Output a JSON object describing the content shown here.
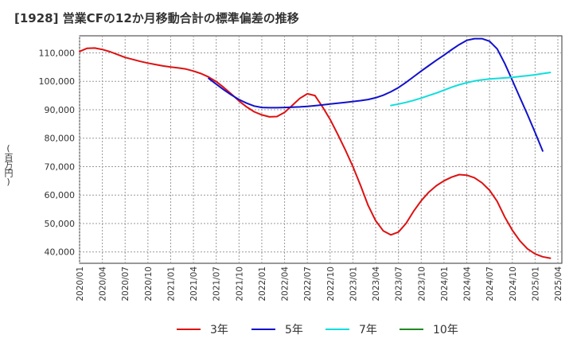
{
  "chart_title": "[1928]  営業CFの12か月移動合計の標準偏差の推移",
  "y_unit": "(百万円)",
  "chart_data": {
    "type": "line",
    "title": "[1928]  営業CFの12か月移動合計の標準偏差の推移",
    "ylabel": "(百万円)",
    "ylim": [
      36000,
      116000
    ],
    "y_ticks": [
      40000,
      50000,
      60000,
      70000,
      80000,
      90000,
      100000,
      110000
    ],
    "y_tick_labels": [
      "40,000",
      "50,000",
      "60,000",
      "70,000",
      "80,000",
      "90,000",
      "100,000",
      "110,000"
    ],
    "x_ticks": [
      "2020/01",
      "2020/04",
      "2020/07",
      "2020/10",
      "2021/01",
      "2021/04",
      "2021/07",
      "2021/10",
      "2022/01",
      "2022/04",
      "2022/07",
      "2022/10",
      "2023/01",
      "2023/04",
      "2023/07",
      "2023/10",
      "2024/01",
      "2024/04",
      "2024/07",
      "2024/10",
      "2025/01",
      "2025/04"
    ],
    "grid": true,
    "legend_position": "bottom",
    "series": [
      {
        "name": "3年",
        "color": "#dd1111",
        "points": [
          [
            "2020/01",
            110500
          ],
          [
            "2020/02",
            111600
          ],
          [
            "2020/03",
            111700
          ],
          [
            "2020/04",
            111200
          ],
          [
            "2020/05",
            110400
          ],
          [
            "2020/06",
            109400
          ],
          [
            "2020/07",
            108400
          ],
          [
            "2020/08",
            107700
          ],
          [
            "2020/09",
            107000
          ],
          [
            "2020/10",
            106400
          ],
          [
            "2020/11",
            105900
          ],
          [
            "2020/12",
            105400
          ],
          [
            "2021/01",
            105000
          ],
          [
            "2021/02",
            104700
          ],
          [
            "2021/03",
            104300
          ],
          [
            "2021/04",
            103600
          ],
          [
            "2021/05",
            102700
          ],
          [
            "2021/06",
            101500
          ],
          [
            "2021/07",
            99900
          ],
          [
            "2021/08",
            97800
          ],
          [
            "2021/09",
            95500
          ],
          [
            "2021/10",
            93100
          ],
          [
            "2021/11",
            91000
          ],
          [
            "2021/12",
            89300
          ],
          [
            "2022/01",
            88200
          ],
          [
            "2022/02",
            87500
          ],
          [
            "2022/03",
            87600
          ],
          [
            "2022/04",
            89100
          ],
          [
            "2022/05",
            91500
          ],
          [
            "2022/06",
            94000
          ],
          [
            "2022/07",
            95600
          ],
          [
            "2022/08",
            95000
          ],
          [
            "2022/09",
            91000
          ],
          [
            "2022/10",
            86600
          ],
          [
            "2022/11",
            81400
          ],
          [
            "2022/12",
            75900
          ],
          [
            "2023/01",
            70000
          ],
          [
            "2023/02",
            63400
          ],
          [
            "2023/03",
            56400
          ],
          [
            "2023/04",
            51000
          ],
          [
            "2023/05",
            47400
          ],
          [
            "2023/06",
            46000
          ],
          [
            "2023/07",
            47000
          ],
          [
            "2023/08",
            50000
          ],
          [
            "2023/09",
            54300
          ],
          [
            "2023/10",
            58000
          ],
          [
            "2023/11",
            61000
          ],
          [
            "2023/12",
            63300
          ],
          [
            "2024/01",
            65000
          ],
          [
            "2024/02",
            66300
          ],
          [
            "2024/03",
            67200
          ],
          [
            "2024/04",
            67000
          ],
          [
            "2024/05",
            66100
          ],
          [
            "2024/06",
            64300
          ],
          [
            "2024/07",
            61700
          ],
          [
            "2024/08",
            57800
          ],
          [
            "2024/09",
            52300
          ],
          [
            "2024/10",
            47600
          ],
          [
            "2024/11",
            43900
          ],
          [
            "2024/12",
            41100
          ],
          [
            "2025/01",
            39300
          ],
          [
            "2025/02",
            38300
          ],
          [
            "2025/03",
            37800
          ]
        ]
      },
      {
        "name": "5年",
        "color": "#1111cc",
        "points": [
          [
            "2021/06",
            101000
          ],
          [
            "2021/07",
            99000
          ],
          [
            "2021/08",
            97000
          ],
          [
            "2021/09",
            95200
          ],
          [
            "2021/10",
            93600
          ],
          [
            "2021/11",
            92300
          ],
          [
            "2021/12",
            91300
          ],
          [
            "2022/01",
            90800
          ],
          [
            "2022/02",
            90700
          ],
          [
            "2022/03",
            90700
          ],
          [
            "2022/04",
            90800
          ],
          [
            "2022/05",
            90900
          ],
          [
            "2022/06",
            91000
          ],
          [
            "2022/07",
            91200
          ],
          [
            "2022/08",
            91400
          ],
          [
            "2022/09",
            91700
          ],
          [
            "2022/10",
            92000
          ],
          [
            "2022/11",
            92300
          ],
          [
            "2022/12",
            92600
          ],
          [
            "2023/01",
            92900
          ],
          [
            "2023/02",
            93200
          ],
          [
            "2023/03",
            93600
          ],
          [
            "2023/04",
            94200
          ],
          [
            "2023/05",
            95100
          ],
          [
            "2023/06",
            96300
          ],
          [
            "2023/07",
            97800
          ],
          [
            "2023/08",
            99600
          ],
          [
            "2023/09",
            101600
          ],
          [
            "2023/10",
            103600
          ],
          [
            "2023/11",
            105500
          ],
          [
            "2023/12",
            107400
          ],
          [
            "2024/01",
            109200
          ],
          [
            "2024/02",
            111100
          ],
          [
            "2024/03",
            112900
          ],
          [
            "2024/04",
            114400
          ],
          [
            "2024/05",
            115000
          ],
          [
            "2024/06",
            115000
          ],
          [
            "2024/07",
            114100
          ],
          [
            "2024/08",
            111400
          ],
          [
            "2024/09",
            106300
          ],
          [
            "2024/10",
            100300
          ],
          [
            "2024/11",
            94300
          ],
          [
            "2024/12",
            88300
          ],
          [
            "2025/01",
            82000
          ],
          [
            "2025/02",
            75500
          ]
        ]
      },
      {
        "name": "7年",
        "color": "#11dddd",
        "points": [
          [
            "2023/06",
            91500
          ],
          [
            "2023/07",
            92000
          ],
          [
            "2023/08",
            92600
          ],
          [
            "2023/09",
            93300
          ],
          [
            "2023/10",
            94100
          ],
          [
            "2023/11",
            95000
          ],
          [
            "2023/12",
            95900
          ],
          [
            "2024/01",
            96900
          ],
          [
            "2024/02",
            97900
          ],
          [
            "2024/03",
            98800
          ],
          [
            "2024/04",
            99500
          ],
          [
            "2024/05",
            100100
          ],
          [
            "2024/06",
            100500
          ],
          [
            "2024/07",
            100800
          ],
          [
            "2024/08",
            101000
          ],
          [
            "2024/09",
            101200
          ],
          [
            "2024/10",
            101400
          ],
          [
            "2024/11",
            101700
          ],
          [
            "2024/12",
            102000
          ],
          [
            "2025/01",
            102300
          ],
          [
            "2025/02",
            102700
          ],
          [
            "2025/03",
            103100
          ]
        ]
      },
      {
        "name": "10年",
        "color": "#228822",
        "points": []
      }
    ]
  }
}
